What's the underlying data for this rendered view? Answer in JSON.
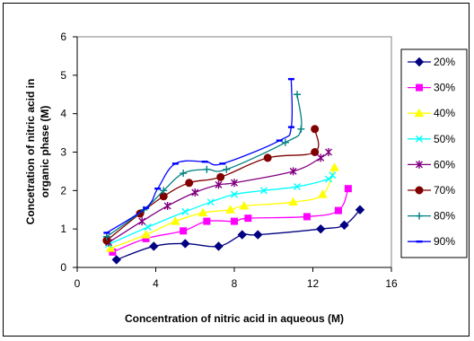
{
  "chart_data": {
    "type": "line",
    "xlabel": "Concentration of nitric  acid in aqueous (M)",
    "ylabel_lines": [
      "Concetration of nitric acid in",
      "organic phase (M)"
    ],
    "xlim": [
      0,
      16
    ],
    "ylim": [
      0,
      6
    ],
    "xticks": [
      "0",
      "4",
      "8",
      "12",
      "16"
    ],
    "yticks": [
      "0",
      "1",
      "2",
      "3",
      "4",
      "5",
      "6"
    ],
    "grid": false,
    "legend": "right",
    "series": [
      {
        "name": "20%",
        "color": "#000080",
        "marker": "diamond",
        "points": [
          [
            2.0,
            0.2
          ],
          [
            3.9,
            0.55
          ],
          [
            5.5,
            0.62
          ],
          [
            7.2,
            0.55
          ],
          [
            8.4,
            0.85
          ],
          [
            9.2,
            0.85
          ],
          [
            12.4,
            1.0
          ],
          [
            13.6,
            1.1
          ],
          [
            14.4,
            1.5
          ]
        ]
      },
      {
        "name": "30%",
        "color": "#ff00ff",
        "marker": "square",
        "points": [
          [
            1.8,
            0.4
          ],
          [
            3.5,
            0.75
          ],
          [
            5.4,
            0.95
          ],
          [
            6.6,
            1.2
          ],
          [
            8.0,
            1.2
          ],
          [
            8.7,
            1.28
          ],
          [
            11.7,
            1.32
          ],
          [
            13.3,
            1.48
          ],
          [
            13.8,
            2.05
          ]
        ]
      },
      {
        "name": "40%",
        "color": "#ffff00",
        "marker": "triangle",
        "points": [
          [
            1.7,
            0.5
          ],
          [
            3.5,
            0.85
          ],
          [
            5.0,
            1.2
          ],
          [
            6.4,
            1.42
          ],
          [
            7.8,
            1.5
          ],
          [
            8.5,
            1.6
          ],
          [
            11.0,
            1.7
          ],
          [
            12.5,
            1.9
          ],
          [
            13.1,
            2.6
          ]
        ]
      },
      {
        "name": "50%",
        "color": "#00ffff",
        "marker": "x",
        "points": [
          [
            1.6,
            0.6
          ],
          [
            3.6,
            1.05
          ],
          [
            5.5,
            1.45
          ],
          [
            6.8,
            1.7
          ],
          [
            8.0,
            1.9
          ],
          [
            9.5,
            2.0
          ],
          [
            11.2,
            2.1
          ],
          [
            12.8,
            2.3
          ],
          [
            13.0,
            2.4
          ]
        ]
      },
      {
        "name": "60%",
        "color": "#800080",
        "marker": "star",
        "points": [
          [
            1.6,
            0.65
          ],
          [
            3.3,
            1.2
          ],
          [
            4.6,
            1.6
          ],
          [
            6.0,
            1.95
          ],
          [
            7.2,
            2.15
          ],
          [
            8.0,
            2.2
          ],
          [
            11.0,
            2.5
          ],
          [
            12.4,
            2.85
          ],
          [
            12.8,
            3.0
          ]
        ]
      },
      {
        "name": "70%",
        "color": "#800000",
        "marker": "circle",
        "points": [
          [
            1.5,
            0.7
          ],
          [
            3.2,
            1.4
          ],
          [
            4.4,
            1.85
          ],
          [
            5.7,
            2.2
          ],
          [
            7.3,
            2.35
          ],
          [
            9.7,
            2.85
          ],
          [
            12.1,
            3.0
          ],
          [
            12.1,
            3.6
          ]
        ]
      },
      {
        "name": "80%",
        "color": "#008080",
        "marker": "plus",
        "points": [
          [
            1.5,
            0.8
          ],
          [
            3.4,
            1.5
          ],
          [
            4.4,
            2.0
          ],
          [
            5.4,
            2.45
          ],
          [
            6.6,
            2.55
          ],
          [
            7.6,
            2.55
          ],
          [
            10.6,
            3.25
          ],
          [
            11.4,
            3.6
          ],
          [
            11.2,
            4.5
          ]
        ]
      },
      {
        "name": "90%",
        "color": "#0000ff",
        "marker": "bar",
        "points": [
          [
            1.5,
            0.9
          ],
          [
            3.5,
            1.55
          ],
          [
            4.1,
            2.05
          ],
          [
            5.0,
            2.7
          ],
          [
            6.5,
            2.75
          ],
          [
            7.4,
            2.7
          ],
          [
            10.3,
            3.3
          ],
          [
            10.9,
            3.65
          ],
          [
            10.9,
            4.9
          ]
        ]
      }
    ]
  }
}
